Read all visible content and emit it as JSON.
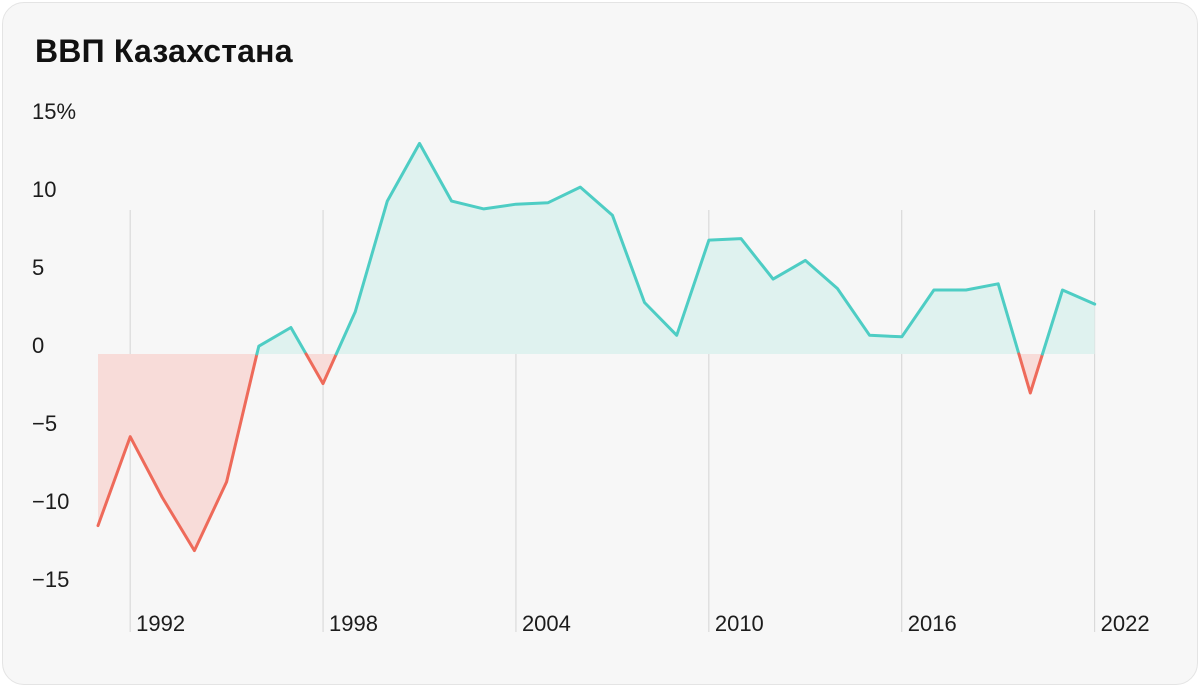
{
  "page": {
    "title": "ВВП Казахстана"
  },
  "colors": {
    "positive_line": "#4ecdc4",
    "positive_fill": "#dff2ef",
    "negative_line": "#ee6a5a",
    "negative_fill": "#f8dcd9",
    "gridline": "#d4d4d4",
    "text": "#1c1c1c"
  },
  "chart_data": {
    "type": "area",
    "title": "ВВП Казахстана",
    "xlabel": "",
    "ylabel": "",
    "ylim": [
      -15,
      15
    ],
    "xlim": [
      1991,
      2022
    ],
    "y_ticks": [
      {
        "value": 15,
        "label": "15%"
      },
      {
        "value": 10,
        "label": "10"
      },
      {
        "value": 5,
        "label": "5"
      },
      {
        "value": 0,
        "label": "0"
      },
      {
        "value": -5,
        "label": "−5"
      },
      {
        "value": -10,
        "label": "−10"
      },
      {
        "value": -15,
        "label": "−15"
      }
    ],
    "x_ticks": [
      {
        "value": 1992,
        "label": "1992"
      },
      {
        "value": 1998,
        "label": "1998"
      },
      {
        "value": 2004,
        "label": "2004"
      },
      {
        "value": 2010,
        "label": "2010"
      },
      {
        "value": 2016,
        "label": "2016"
      },
      {
        "value": 2022,
        "label": "2022"
      }
    ],
    "grid": "vertical lines at labelled years",
    "legend": "none",
    "series": [
      {
        "x": [
          1991,
          1992,
          1993,
          1994,
          1995,
          1996,
          1997,
          1998,
          1999,
          2000,
          2001,
          2002,
          2003,
          2004,
          2005,
          2006,
          2007,
          2008,
          2009,
          2010,
          2011,
          2012,
          2013,
          2014,
          2015,
          2016,
          2017,
          2018,
          2019,
          2020,
          2021,
          2022
        ],
        "values": [
          -11,
          -5.3,
          -9.2,
          -12.6,
          -8.2,
          0.5,
          1.7,
          -1.9,
          2.7,
          9.8,
          13.5,
          9.8,
          9.3,
          9.6,
          9.7,
          10.7,
          8.9,
          3.3,
          1.2,
          7.3,
          7.4,
          4.8,
          6.0,
          4.2,
          1.2,
          1.1,
          4.1,
          4.1,
          4.5,
          -2.5,
          4.1,
          3.2
        ]
      }
    ]
  }
}
